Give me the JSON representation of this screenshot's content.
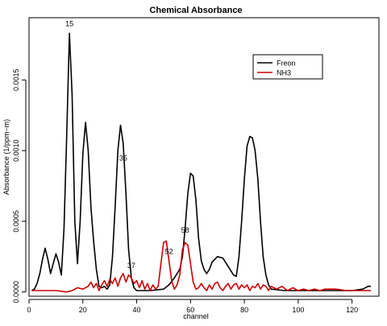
{
  "chart_data": {
    "type": "line",
    "title": "Chemical Absorbance",
    "xlabel": "channel",
    "ylabel": "Absorbance (1/ppm−m)",
    "xlim": [
      0,
      130
    ],
    "ylim": [
      -3e-05,
      0.00194
    ],
    "x_ticks": [
      0,
      20,
      40,
      60,
      80,
      100,
      120
    ],
    "x_tick_labels": [
      "0",
      "20",
      "40",
      "60",
      "80",
      "100",
      "120"
    ],
    "y_ticks": [
      0.0,
      0.0005,
      0.001,
      0.0015
    ],
    "y_tick_labels": [
      "0.0000",
      "0.0005",
      "0.0010",
      "0.0015"
    ],
    "legend_position": "top-right",
    "series": [
      {
        "name": "Freon",
        "color": "#000000",
        "points": [
          [
            1,
            1e-05
          ],
          [
            2,
            2e-05
          ],
          [
            3,
            6e-05
          ],
          [
            4,
            0.00013
          ],
          [
            5,
            0.00023
          ],
          [
            6,
            0.00031
          ],
          [
            7,
            0.00023
          ],
          [
            8,
            0.00013
          ],
          [
            9,
            0.0002
          ],
          [
            10,
            0.00027
          ],
          [
            11,
            0.00021
          ],
          [
            12,
            0.00012
          ],
          [
            13,
            0.00045
          ],
          [
            14,
            0.0011
          ],
          [
            15,
            0.00183
          ],
          [
            16,
            0.0014
          ],
          [
            17,
            0.0005
          ],
          [
            18,
            0.0002
          ],
          [
            19,
            0.0005
          ],
          [
            20,
            0.00098
          ],
          [
            21,
            0.0012
          ],
          [
            22,
            0.001
          ],
          [
            23,
            0.0006
          ],
          [
            24,
            0.00036
          ],
          [
            25,
            0.00016
          ],
          [
            26,
            4e-05
          ],
          [
            27,
            3e-05
          ],
          [
            28,
            4e-05
          ],
          [
            29,
            2e-05
          ],
          [
            30,
            5e-05
          ],
          [
            31,
            0.00025
          ],
          [
            32,
            0.0006
          ],
          [
            33,
            0.001
          ],
          [
            34,
            0.00118
          ],
          [
            35,
            0.00105
          ],
          [
            36,
            0.0007
          ],
          [
            37,
            0.0003
          ],
          [
            38,
            0.0001
          ],
          [
            39,
            3e-05
          ],
          [
            40,
            1e-05
          ],
          [
            45,
            1e-05
          ],
          [
            50,
            2e-05
          ],
          [
            52,
            5e-05
          ],
          [
            54,
            0.0001
          ],
          [
            56,
            0.00016
          ],
          [
            57,
            0.00025
          ],
          [
            58,
            0.00045
          ],
          [
            59,
            0.0007
          ],
          [
            60,
            0.00084
          ],
          [
            61,
            0.00082
          ],
          [
            62,
            0.00065
          ],
          [
            63,
            0.00038
          ],
          [
            64,
            0.00022
          ],
          [
            65,
            0.00016
          ],
          [
            66,
            0.00013
          ],
          [
            67,
            0.00016
          ],
          [
            68,
            0.00021
          ],
          [
            70,
            0.00025
          ],
          [
            72,
            0.00024
          ],
          [
            74,
            0.00018
          ],
          [
            76,
            0.00012
          ],
          [
            77,
            0.00011
          ],
          [
            78,
            0.00025
          ],
          [
            79,
            0.0005
          ],
          [
            80,
            0.0008
          ],
          [
            81,
            0.00103
          ],
          [
            82,
            0.0011
          ],
          [
            83,
            0.00109
          ],
          [
            84,
            0.001
          ],
          [
            85,
            0.0008
          ],
          [
            86,
            0.0005
          ],
          [
            87,
            0.00025
          ],
          [
            88,
            0.00012
          ],
          [
            89,
            5e-05
          ],
          [
            90,
            2e-05
          ],
          [
            95,
            1e-05
          ],
          [
            100,
            1e-05
          ],
          [
            110,
            1e-05
          ],
          [
            120,
            1e-05
          ],
          [
            124,
            2e-05
          ],
          [
            126,
            4e-05
          ],
          [
            127,
            4e-05
          ]
        ]
      },
      {
        "name": "NH3",
        "color": "#cc0000",
        "points": [
          [
            1,
            1e-05
          ],
          [
            5,
            1e-05
          ],
          [
            10,
            1e-05
          ],
          [
            14,
            0.0
          ],
          [
            16,
            1e-05
          ],
          [
            18,
            3e-05
          ],
          [
            20,
            2e-05
          ],
          [
            22,
            4e-05
          ],
          [
            23,
            7e-05
          ],
          [
            24,
            3e-05
          ],
          [
            25,
            6e-05
          ],
          [
            26,
            1e-05
          ],
          [
            27,
            5e-05
          ],
          [
            28,
            8e-05
          ],
          [
            29,
            4e-05
          ],
          [
            30,
            9e-05
          ],
          [
            31,
            6e-05
          ],
          [
            32,
            0.0001
          ],
          [
            33,
            4e-05
          ],
          [
            34,
            0.0001
          ],
          [
            35,
            0.00013
          ],
          [
            36,
            7e-05
          ],
          [
            37,
            0.00012
          ],
          [
            38,
            0.0001
          ],
          [
            39,
            6e-05
          ],
          [
            40,
            8e-05
          ],
          [
            41,
            3e-05
          ],
          [
            42,
            8e-05
          ],
          [
            43,
            2e-05
          ],
          [
            44,
            6e-05
          ],
          [
            45,
            1e-05
          ],
          [
            46,
            5e-05
          ],
          [
            47,
            2e-05
          ],
          [
            48,
            4e-05
          ],
          [
            49,
            0.0002
          ],
          [
            50,
            0.00035
          ],
          [
            51,
            0.00036
          ],
          [
            52,
            0.00022
          ],
          [
            53,
            8e-05
          ],
          [
            54,
            2e-05
          ],
          [
            55,
            5e-05
          ],
          [
            56,
            0.00012
          ],
          [
            57,
            0.0003
          ],
          [
            58,
            0.00035
          ],
          [
            59,
            0.00033
          ],
          [
            60,
            0.0002
          ],
          [
            61,
            7e-05
          ],
          [
            62,
            2e-05
          ],
          [
            63,
            3e-05
          ],
          [
            64,
            6e-05
          ],
          [
            65,
            3e-05
          ],
          [
            66,
            1e-05
          ],
          [
            67,
            5e-05
          ],
          [
            68,
            2e-05
          ],
          [
            69,
            6e-05
          ],
          [
            70,
            7e-05
          ],
          [
            71,
            3e-05
          ],
          [
            72,
            1e-05
          ],
          [
            73,
            4e-05
          ],
          [
            74,
            6e-05
          ],
          [
            75,
            2e-05
          ],
          [
            76,
            5e-05
          ],
          [
            77,
            6e-05
          ],
          [
            78,
            2e-05
          ],
          [
            79,
            5e-05
          ],
          [
            80,
            3e-05
          ],
          [
            81,
            5e-05
          ],
          [
            82,
            1e-05
          ],
          [
            83,
            4e-05
          ],
          [
            84,
            3e-05
          ],
          [
            85,
            6e-05
          ],
          [
            86,
            2e-05
          ],
          [
            87,
            5e-05
          ],
          [
            88,
            4e-05
          ],
          [
            89,
            1e-05
          ],
          [
            90,
            4e-05
          ],
          [
            92,
            2e-05
          ],
          [
            94,
            4e-05
          ],
          [
            96,
            1e-05
          ],
          [
            98,
            3e-05
          ],
          [
            100,
            1e-05
          ],
          [
            102,
            2e-05
          ],
          [
            104,
            1e-05
          ],
          [
            106,
            2e-05
          ],
          [
            108,
            1e-05
          ],
          [
            110,
            2e-05
          ],
          [
            114,
            2e-05
          ],
          [
            118,
            1e-05
          ],
          [
            122,
            1e-05
          ],
          [
            125,
            1e-05
          ],
          [
            127,
            1e-05
          ]
        ]
      }
    ],
    "annotations": [
      {
        "text": "15",
        "x": 15,
        "y": 0.00188
      },
      {
        "text": "35",
        "x": 35,
        "y": 0.00093
      },
      {
        "text": "37",
        "x": 38,
        "y": 0.00017
      },
      {
        "text": "52",
        "x": 52,
        "y": 0.00027
      },
      {
        "text": "58",
        "x": 58,
        "y": 0.00042
      }
    ]
  }
}
